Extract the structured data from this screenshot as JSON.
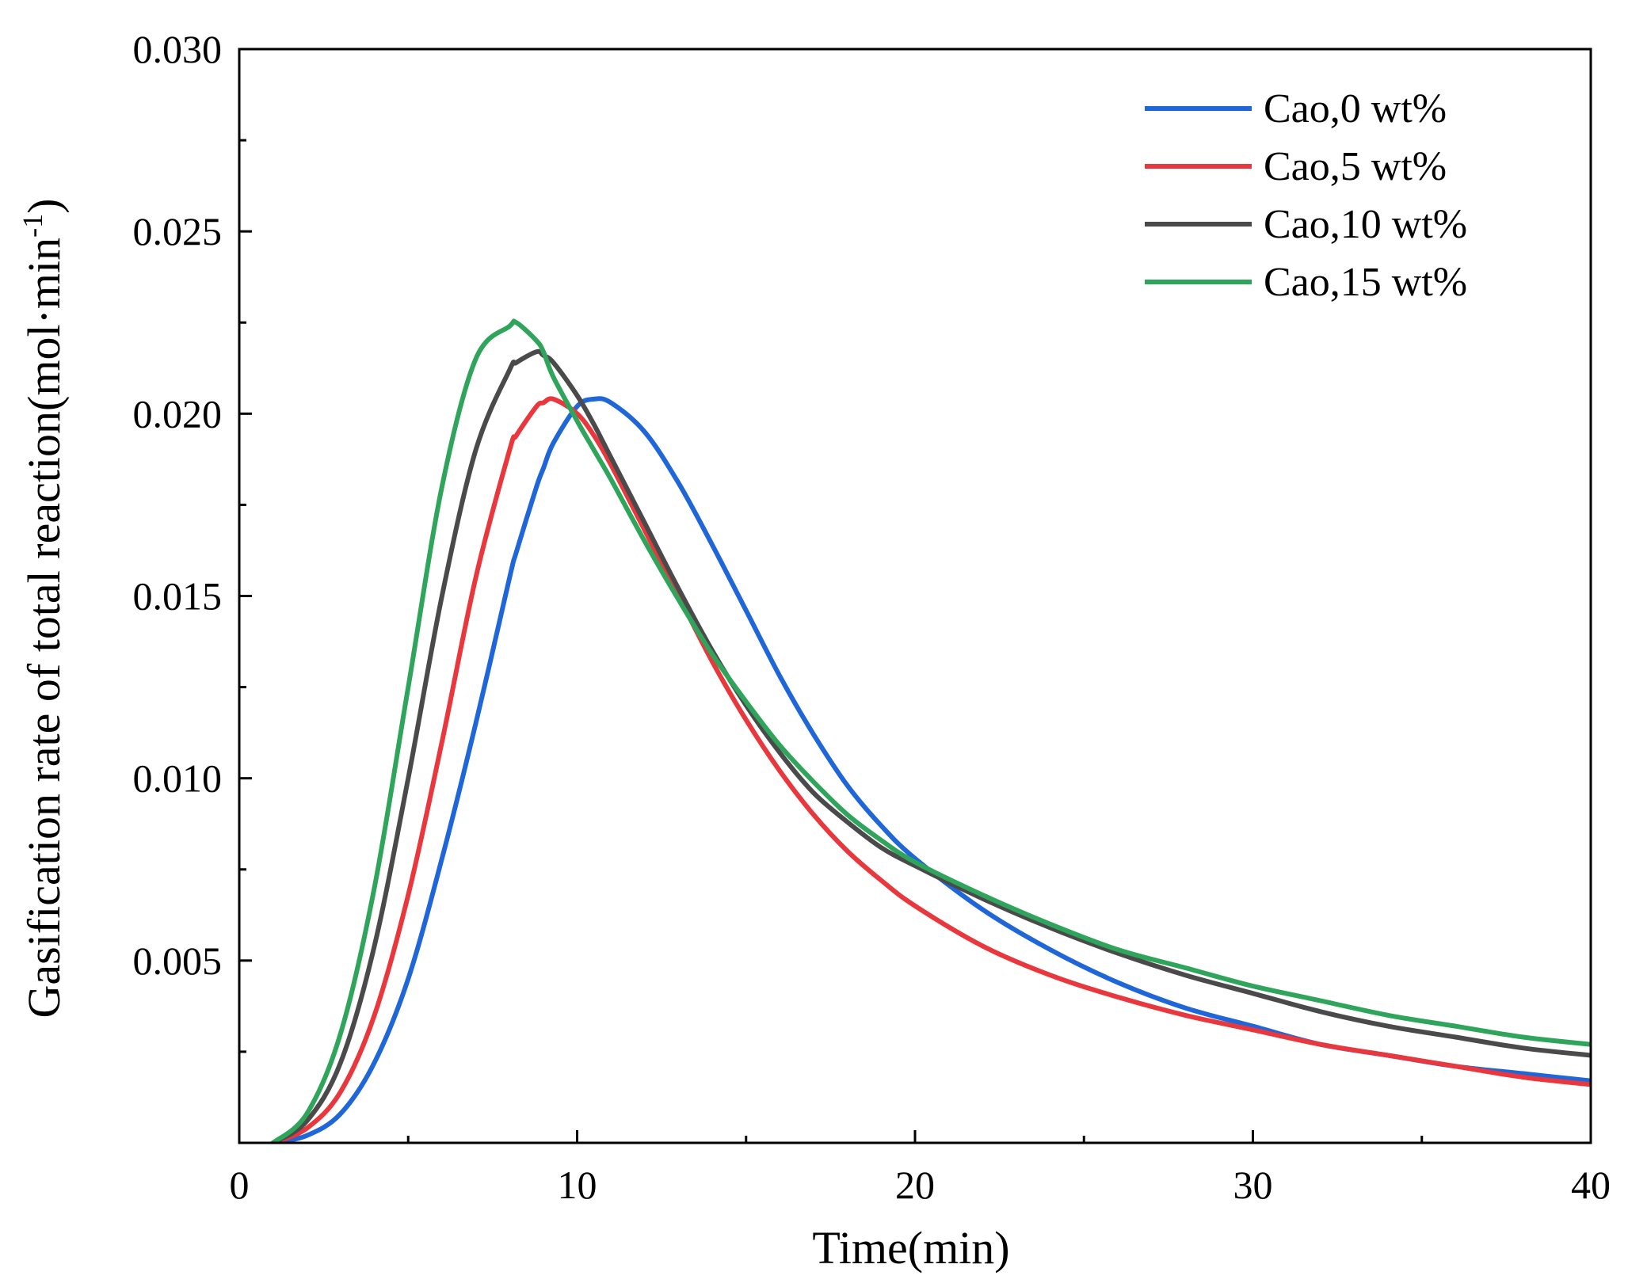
{
  "chart_data": {
    "type": "line",
    "title": "",
    "xlabel": "Time(min)",
    "ylabel_main": "Gasification rate of total reaction(mol·min",
    "ylabel_sup": "-1",
    "ylabel_close": ")",
    "xlim": [
      0,
      40
    ],
    "ylim": [
      0,
      0.03
    ],
    "xticks": [
      0,
      10,
      20,
      30,
      40
    ],
    "xtick_labels": [
      "0",
      "10",
      "20",
      "30",
      "40"
    ],
    "yticks": [
      0.005,
      0.01,
      0.015,
      0.02,
      0.025,
      0.03
    ],
    "ytick_labels": [
      "0.005",
      "0.010",
      "0.015",
      "0.020",
      "0.025",
      "0.030"
    ],
    "grid": false,
    "legend_position": "top-right",
    "x": [
      1,
      2,
      3,
      4,
      5,
      6,
      7,
      8,
      8.2,
      8.8,
      9,
      9.3,
      10,
      10.5,
      11,
      12,
      13,
      14,
      15,
      16,
      17,
      18,
      19,
      20,
      22,
      24,
      26,
      28,
      30,
      32,
      34,
      36,
      38,
      40
    ],
    "series": [
      {
        "name": "Cao,0 wt%",
        "color": "#1f66d9",
        "values": [
          0,
          0.0002,
          0.0008,
          0.0022,
          0.0045,
          0.0078,
          0.0115,
          0.0155,
          0.0162,
          0.018,
          0.0185,
          0.0192,
          0.0202,
          0.0204,
          0.0203,
          0.0195,
          0.0181,
          0.0164,
          0.0146,
          0.0128,
          0.0112,
          0.0098,
          0.0087,
          0.0078,
          0.0064,
          0.0053,
          0.0044,
          0.0037,
          0.0032,
          0.0027,
          0.0024,
          0.0021,
          0.0019,
          0.0017
        ]
      },
      {
        "name": "Cao,5 wt%",
        "color": "#e8383d",
        "values": [
          0,
          0.0004,
          0.0014,
          0.0035,
          0.0068,
          0.011,
          0.0155,
          0.019,
          0.0194,
          0.0202,
          0.0203,
          0.0204,
          0.02,
          0.0194,
          0.0186,
          0.0168,
          0.015,
          0.0132,
          0.0116,
          0.0102,
          0.009,
          0.008,
          0.0072,
          0.0065,
          0.0054,
          0.0046,
          0.004,
          0.0035,
          0.0031,
          0.0027,
          0.0024,
          0.0021,
          0.0018,
          0.0016
        ]
      },
      {
        "name": "Cao,10 wt%",
        "color": "#4a4a4a",
        "values": [
          0,
          0.0006,
          0.0022,
          0.0054,
          0.01,
          0.015,
          0.019,
          0.0212,
          0.0214,
          0.0217,
          0.0216,
          0.0214,
          0.0205,
          0.0197,
          0.0188,
          0.017,
          0.0152,
          0.0135,
          0.012,
          0.0107,
          0.0096,
          0.0088,
          0.0081,
          0.0076,
          0.0067,
          0.0059,
          0.0052,
          0.0046,
          0.0041,
          0.0036,
          0.0032,
          0.0029,
          0.0026,
          0.0024
        ]
      },
      {
        "name": "Cao,15 wt%",
        "color": "#2ea55a",
        "values": [
          0,
          0.0008,
          0.003,
          0.007,
          0.0125,
          0.018,
          0.0215,
          0.0224,
          0.0225,
          0.022,
          0.0217,
          0.021,
          0.0198,
          0.019,
          0.0182,
          0.0165,
          0.0149,
          0.0134,
          0.0121,
          0.0109,
          0.0099,
          0.009,
          0.0083,
          0.0077,
          0.0068,
          0.006,
          0.0053,
          0.0048,
          0.0043,
          0.0039,
          0.0035,
          0.0032,
          0.0029,
          0.0027
        ]
      }
    ]
  }
}
